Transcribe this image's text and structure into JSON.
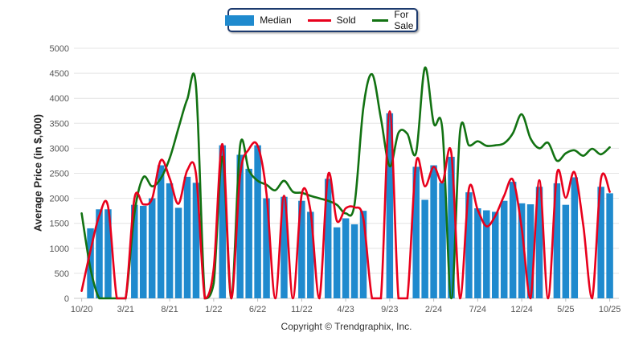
{
  "legend": {
    "items": [
      {
        "label": "Median",
        "type": "bar",
        "color": "#1f8ace"
      },
      {
        "label": "Sold",
        "type": "line",
        "color": "#e8001c"
      },
      {
        "label": "For Sale",
        "type": "line",
        "color": "#127212"
      }
    ],
    "border_color": "#1c3a6e"
  },
  "y_axis": {
    "title": "Average Price (in $,000)",
    "tick_labels": [
      "0",
      "500",
      "1000",
      "1500",
      "2000",
      "2500",
      "3000",
      "3500",
      "4000",
      "4500",
      "5000"
    ]
  },
  "x_axis": {
    "tick_labels": [
      "10/20",
      "3/21",
      "8/21",
      "1/22",
      "6/22",
      "11/22",
      "4/23",
      "9/23",
      "2/24",
      "7/24",
      "12/24",
      "5/25",
      "10/25"
    ]
  },
  "footer": {
    "copyright": "Copyright © Trendgraphix, Inc."
  },
  "chart_data": {
    "type": "bar",
    "title": "",
    "xlabel": "",
    "ylabel": "Average Price (in $,000)",
    "ylim": [
      0,
      5000
    ],
    "y_step": 500,
    "grid": true,
    "legend_position": "top-center",
    "x": [
      "10/20",
      "11/20",
      "12/20",
      "1/21",
      "2/21",
      "3/21",
      "4/21",
      "5/21",
      "6/21",
      "7/21",
      "8/21",
      "9/21",
      "10/21",
      "11/21",
      "12/21",
      "1/22",
      "2/22",
      "3/22",
      "4/22",
      "5/22",
      "6/22",
      "7/22",
      "8/22",
      "9/22",
      "10/22",
      "11/22",
      "12/22",
      "1/23",
      "2/23",
      "3/23",
      "4/23",
      "5/23",
      "6/23",
      "7/23",
      "8/23",
      "9/23",
      "10/23",
      "11/23",
      "12/23",
      "1/24",
      "2/24",
      "3/24",
      "4/24",
      "5/24",
      "6/24",
      "7/24",
      "8/24",
      "9/24",
      "10/24",
      "11/24",
      "12/24",
      "1/25",
      "2/25",
      "3/25",
      "4/25",
      "5/25",
      "6/25",
      "7/25",
      "8/25",
      "9/25",
      "10/25"
    ],
    "series": [
      {
        "name": "Median",
        "type": "bar",
        "color": "#1f8ace",
        "values": [
          null,
          1400,
          1780,
          1780,
          null,
          null,
          1870,
          1850,
          2000,
          2660,
          2300,
          1810,
          2430,
          2310,
          null,
          null,
          3060,
          null,
          2870,
          2590,
          3060,
          2000,
          null,
          2030,
          null,
          1950,
          1730,
          null,
          2390,
          1420,
          1600,
          1480,
          1750,
          null,
          null,
          3700,
          null,
          null,
          2630,
          1970,
          2660,
          2310,
          2830,
          null,
          2120,
          1800,
          1760,
          1730,
          1950,
          2330,
          1900,
          1880,
          2230,
          null,
          2300,
          1870,
          2420,
          null,
          null,
          2230,
          2100
        ]
      },
      {
        "name": "Sold",
        "type": "line",
        "color": "#e8001c",
        "values": [
          150,
          950,
          1650,
          1840,
          0,
          0,
          2000,
          1880,
          1990,
          2760,
          2400,
          1890,
          2560,
          2480,
          0,
          600,
          3080,
          0,
          2450,
          2980,
          3050,
          2100,
          0,
          2050,
          0,
          2080,
          1750,
          0,
          2470,
          1550,
          1800,
          1820,
          1600,
          0,
          0,
          3740,
          0,
          0,
          2710,
          2240,
          2630,
          2320,
          2910,
          0,
          2190,
          1770,
          1440,
          1650,
          2050,
          2370,
          1400,
          0,
          2360,
          0,
          2490,
          2010,
          2520,
          1450,
          0,
          2380,
          2130
        ]
      },
      {
        "name": "For Sale",
        "type": "line",
        "color": "#127212",
        "values": [
          1700,
          600,
          0,
          0,
          0,
          0,
          1700,
          2420,
          2240,
          2400,
          2800,
          3400,
          3980,
          4230,
          0,
          300,
          2830,
          0,
          3050,
          2560,
          2350,
          2270,
          2160,
          2350,
          2130,
          2110,
          2050,
          2000,
          1950,
          1870,
          1700,
          1870,
          3800,
          4480,
          3600,
          2640,
          3310,
          3290,
          2910,
          4610,
          3500,
          3360,
          0,
          3340,
          3060,
          3140,
          3050,
          3060,
          3100,
          3300,
          3680,
          3200,
          3000,
          3110,
          2750,
          2900,
          2960,
          2850,
          2990,
          2880,
          3020
        ]
      }
    ]
  }
}
